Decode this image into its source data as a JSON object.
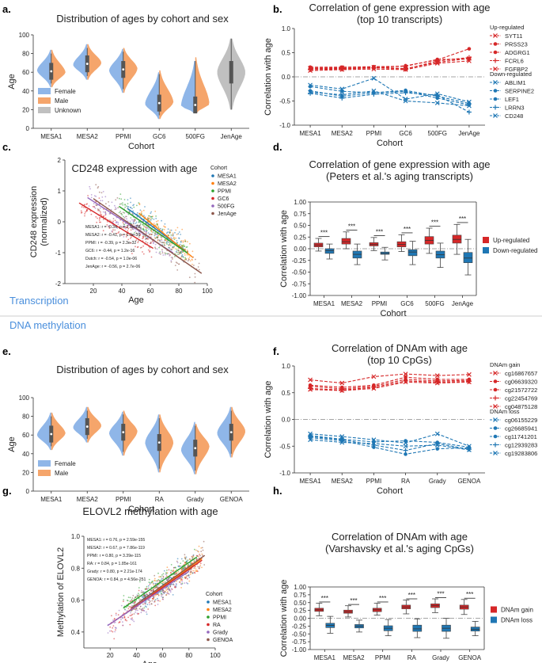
{
  "section_labels": {
    "transcription": "Transcription",
    "methylation": "DNA methylation"
  },
  "colors": {
    "female": "#8fb6e8",
    "male": "#f5a56b",
    "unknown": "#c0c0c0",
    "up": "#d62728",
    "down": "#1f77b4",
    "section": "#4a8fdc",
    "cohort_colors": [
      "#1f77b4",
      "#ff7f0e",
      "#2ca02c",
      "#d62728",
      "#9467bd",
      "#8c564b"
    ]
  },
  "chart_data": [
    {
      "panel": "a.",
      "type": "violin",
      "title": "Distribution of ages by cohort and sex",
      "xlabel": "Cohort",
      "ylabel": "Age",
      "ylim": [
        0,
        100
      ],
      "yticks": [
        0,
        20,
        40,
        60,
        80,
        100
      ],
      "categories": [
        "MESA1",
        "MESA2",
        "PPMI",
        "GC6",
        "500FG",
        "JenAge"
      ],
      "legend": [
        "Female",
        "Male",
        "Unknown"
      ],
      "groups": [
        {
          "female": [
            44,
            84,
            62
          ],
          "male": [
            44,
            84,
            60
          ]
        },
        {
          "female": [
            52,
            90,
            68
          ],
          "male": [
            52,
            90,
            70
          ]
        },
        {
          "female": [
            38,
            85,
            62
          ],
          "male": [
            38,
            86,
            64
          ]
        },
        {
          "female": [
            10,
            60,
            26
          ],
          "male": [
            10,
            62,
            28
          ]
        },
        {
          "female": [
            16,
            72,
            24
          ],
          "male": [
            16,
            76,
            26
          ]
        },
        {
          "unknown": [
            20,
            96,
            60
          ]
        }
      ]
    },
    {
      "panel": "b.",
      "type": "line",
      "title": "Correlation of gene expression with age",
      "subtitle": "(top 10 transcripts)",
      "xlabel": "Cohort",
      "ylabel": "Correlation with age",
      "ylim": [
        -1.0,
        1.0
      ],
      "yticks": [
        -1.0,
        -0.5,
        0.0,
        0.5,
        1.0
      ],
      "categories": [
        "MESA1",
        "MESA2",
        "PPMI",
        "GC6",
        "500FG",
        "JenAge"
      ],
      "up_title": "Up-regulated",
      "down_title": "Down-regulated",
      "up_series": [
        {
          "name": "SYT11",
          "values": [
            0.18,
            0.19,
            0.2,
            0.17,
            0.3,
            0.38
          ]
        },
        {
          "name": "PRSS23",
          "values": [
            0.2,
            0.2,
            0.21,
            0.22,
            0.36,
            0.37
          ]
        },
        {
          "name": "ADGRG1",
          "values": [
            0.17,
            0.17,
            0.18,
            0.23,
            0.35,
            0.58
          ]
        },
        {
          "name": "FCRL6",
          "values": [
            0.15,
            0.16,
            0.19,
            0.16,
            0.33,
            0.4
          ]
        },
        {
          "name": "FGFBP2",
          "values": [
            0.13,
            0.15,
            0.16,
            0.15,
            0.28,
            0.33
          ]
        }
      ],
      "down_series": [
        {
          "name": "ABLIM1",
          "values": [
            -0.17,
            -0.25,
            -0.03,
            -0.46,
            -0.35,
            -0.52
          ]
        },
        {
          "name": "SERPINE2",
          "values": [
            -0.2,
            -0.3,
            -0.33,
            -0.3,
            -0.44,
            -0.58
          ]
        },
        {
          "name": "LEF1",
          "values": [
            -0.29,
            -0.4,
            -0.33,
            -0.28,
            -0.4,
            -0.55
          ]
        },
        {
          "name": "LRRN3",
          "values": [
            -0.34,
            -0.44,
            -0.36,
            -0.33,
            -0.38,
            -0.73
          ]
        },
        {
          "name": "CD248",
          "values": [
            -0.32,
            -0.37,
            -0.29,
            -0.5,
            -0.54,
            -0.6
          ]
        }
      ]
    },
    {
      "panel": "c.",
      "type": "scatter",
      "title": "CD248 expression with age",
      "xlabel": "Age",
      "ylabel": "CD248 expression\n(normalized)",
      "xlim": [
        0,
        100
      ],
      "ylim": [
        -2,
        2
      ],
      "xticks": [
        20,
        40,
        60,
        80,
        100
      ],
      "yticks": [
        -2,
        -1,
        0,
        1,
        2
      ],
      "legend_title": "Cohort",
      "cohorts": [
        {
          "name": "MESA1",
          "age": [
            44,
            84
          ],
          "fit": [
            0.43,
            -0.91
          ]
        },
        {
          "name": "MESA2",
          "age": [
            52,
            90
          ],
          "fit": [
            0.28,
            -1.16
          ]
        },
        {
          "name": "PPMI",
          "age": [
            38,
            86
          ],
          "fit": [
            0.5,
            -1.01
          ]
        },
        {
          "name": "GC6",
          "age": [
            10,
            62
          ],
          "fit": [
            0.61,
            -0.86
          ]
        },
        {
          "name": "500FG",
          "age": [
            16,
            76
          ],
          "fit": [
            0.78,
            -1.01
          ]
        },
        {
          "name": "JenAge",
          "age": [
            20,
            96
          ],
          "fit": [
            0.75,
            -1.67
          ]
        }
      ],
      "annotations": [
        "MESA1: r = -0.34, p = 2.1e-28",
        "MESA2: r = -0.41, p = 1.9e-36",
        "PPMI: r = -0.39, p = 2.3e-32",
        "GC6: r = -0.44, p = 1.2e-16",
        "Dutch: r = -0.54, p = 1.0e-06",
        "JenAge: r = -0.56, p = 2.7e-06"
      ]
    },
    {
      "panel": "d.",
      "type": "box",
      "title": "Correlation of gene expression with age",
      "subtitle": "(Peters et al.'s aging transcripts)",
      "xlabel": "Cohort",
      "ylabel": "Correlation with age",
      "ylim": [
        -1.0,
        1.0
      ],
      "yticks": [
        -1.0,
        -0.75,
        -0.5,
        -0.25,
        0.0,
        0.25,
        0.5,
        0.75,
        1.0
      ],
      "categories": [
        "MESA1",
        "MESA2",
        "PPMI",
        "GC6",
        "500FG",
        "JenAge"
      ],
      "legend": [
        "Up-regulated",
        "Down-regulated"
      ],
      "significance": "***",
      "up_boxes": [
        [
          -0.05,
          0.04,
          0.08,
          0.12,
          0.22
        ],
        [
          0.0,
          0.1,
          0.15,
          0.22,
          0.36
        ],
        [
          -0.04,
          0.06,
          0.09,
          0.13,
          0.24
        ],
        [
          -0.06,
          0.04,
          0.09,
          0.15,
          0.3
        ],
        [
          -0.1,
          0.1,
          0.18,
          0.26,
          0.44
        ],
        [
          -0.12,
          0.12,
          0.2,
          0.29,
          0.52
        ]
      ],
      "down_boxes": [
        [
          -0.22,
          -0.1,
          -0.04,
          0.0,
          0.1
        ],
        [
          -0.34,
          -0.2,
          -0.12,
          -0.05,
          0.1
        ],
        [
          -0.24,
          -0.12,
          -0.1,
          -0.07,
          0.03
        ],
        [
          -0.34,
          -0.15,
          -0.07,
          -0.02,
          0.16
        ],
        [
          -0.4,
          -0.2,
          -0.13,
          -0.05,
          0.12
        ],
        [
          -0.56,
          -0.3,
          -0.2,
          -0.08,
          0.2
        ]
      ]
    },
    {
      "panel": "e.",
      "type": "violin",
      "title": "Distribution of ages by cohort and sex",
      "xlabel": "Cohort",
      "ylabel": "Age",
      "ylim": [
        0,
        100
      ],
      "yticks": [
        0,
        20,
        40,
        60,
        80,
        100
      ],
      "categories": [
        "MESA1",
        "MESA2",
        "PPMI",
        "RA",
        "Grady",
        "GENOA"
      ],
      "legend": [
        "Female",
        "Male"
      ],
      "groups": [
        {
          "female": [
            44,
            84,
            60
          ],
          "male": [
            44,
            84,
            62
          ]
        },
        {
          "female": [
            52,
            90,
            68
          ],
          "male": [
            52,
            90,
            70
          ]
        },
        {
          "female": [
            38,
            85,
            62
          ],
          "male": [
            38,
            86,
            64
          ]
        },
        {
          "female": [
            20,
            82,
            52
          ],
          "male": [
            20,
            82,
            52
          ]
        },
        {
          "female": [
            18,
            74,
            44
          ],
          "male": [
            18,
            72,
            48
          ]
        },
        {
          "female": [
            36,
            90,
            62
          ],
          "male": [
            36,
            90,
            64
          ]
        }
      ]
    },
    {
      "panel": "f.",
      "type": "line",
      "title": "Correlation of DNAm with age",
      "subtitle": "(top 10 CpGs)",
      "xlabel": "Cohort",
      "ylabel": "Correlation with age",
      "ylim": [
        -1.0,
        1.0
      ],
      "yticks": [
        -1.0,
        -0.5,
        0.0,
        0.5,
        1.0
      ],
      "categories": [
        "MESA1",
        "MESA2",
        "PPMI",
        "RA",
        "Grady",
        "GENOA"
      ],
      "up_title": "DNAm gain",
      "down_title": "DNAm loss",
      "up_series": [
        {
          "name": "cg16867657",
          "values": [
            0.74,
            0.68,
            0.8,
            0.85,
            0.82,
            0.84
          ]
        },
        {
          "name": "cg06639320",
          "values": [
            0.64,
            0.6,
            0.64,
            0.79,
            0.75,
            0.75
          ]
        },
        {
          "name": "cg21572722",
          "values": [
            0.62,
            0.57,
            0.62,
            0.75,
            0.72,
            0.73
          ]
        },
        {
          "name": "cg22454769",
          "values": [
            0.58,
            0.55,
            0.6,
            0.72,
            0.7,
            0.71
          ]
        },
        {
          "name": "cg04875128",
          "values": [
            0.56,
            0.54,
            0.58,
            0.7,
            0.68,
            0.7
          ]
        }
      ],
      "down_series": [
        {
          "name": "cg06155229",
          "values": [
            -0.27,
            -0.32,
            -0.38,
            -0.44,
            -0.27,
            -0.5
          ]
        },
        {
          "name": "cg26685941",
          "values": [
            -0.3,
            -0.37,
            -0.42,
            -0.4,
            -0.43,
            -0.52
          ]
        },
        {
          "name": "cg11741201",
          "values": [
            -0.34,
            -0.4,
            -0.52,
            -0.65,
            -0.55,
            -0.53
          ]
        },
        {
          "name": "cg12939283",
          "values": [
            -0.32,
            -0.38,
            -0.48,
            -0.58,
            -0.45,
            -0.56
          ]
        },
        {
          "name": "cg19283806",
          "values": [
            -0.38,
            -0.43,
            -0.45,
            -0.5,
            -0.48,
            -0.57
          ]
        }
      ]
    },
    {
      "panel": "g.",
      "type": "scatter",
      "title": "ELOVL2 methylation with age",
      "xlabel": "Age",
      "ylabel": "Methylation of ELOVL2",
      "xlim": [
        0,
        100
      ],
      "ylim": [
        0.3,
        1.0
      ],
      "xticks": [
        20,
        40,
        60,
        80,
        100
      ],
      "yticks": [
        0.4,
        0.6,
        0.8,
        1.0
      ],
      "legend_title": "Cohort",
      "cohorts": [
        {
          "name": "MESA1",
          "age": [
            44,
            84
          ],
          "fit": [
            0.6,
            0.82
          ]
        },
        {
          "name": "MESA2",
          "age": [
            52,
            90
          ],
          "fit": [
            0.64,
            0.86
          ]
        },
        {
          "name": "PPMI",
          "age": [
            30,
            86
          ],
          "fit": [
            0.55,
            0.87
          ]
        },
        {
          "name": "RA",
          "age": [
            20,
            90
          ],
          "fit": [
            0.45,
            0.85
          ]
        },
        {
          "name": "Grady",
          "age": [
            18,
            80
          ],
          "fit": [
            0.44,
            0.78
          ]
        },
        {
          "name": "GENOA",
          "age": [
            36,
            92
          ],
          "fit": [
            0.55,
            0.88
          ]
        }
      ],
      "annotations": [
        "MESA1: r = 0.76, p = 2.59e-155",
        "MESA2: r = 0.67, p = 7.86e-119",
        "PPMI: r = 0.80, p = 3.39e-115",
        "RA: r = 0.84, p = 1.85e-161",
        "Grady: r = 0.80, p = 2.21e-174",
        "GENOA: r = 0.84, p = 4.56e-251"
      ]
    },
    {
      "panel": "h.",
      "type": "box",
      "title": "Correlation of DNAm with age",
      "subtitle": "(Varshavsky et al.'s aging CpGs)",
      "xlabel": "Cohort",
      "ylabel": "Correlation with age",
      "ylim": [
        -1.0,
        1.0
      ],
      "yticks": [
        -1.0,
        -0.75,
        -0.5,
        -0.25,
        0.0,
        0.25,
        0.5,
        0.75,
        1.0
      ],
      "categories": [
        "MESA1",
        "MESA2",
        "PPMI",
        "RA",
        "Grady",
        "GENOA"
      ],
      "legend": [
        "DNAm gain",
        "DNAm loss"
      ],
      "significance": "***",
      "up_boxes": [
        [
          0.08,
          0.22,
          0.27,
          0.32,
          0.48
        ],
        [
          0.04,
          0.16,
          0.2,
          0.26,
          0.4
        ],
        [
          0.1,
          0.21,
          0.27,
          0.32,
          0.48
        ],
        [
          0.14,
          0.3,
          0.36,
          0.42,
          0.58
        ],
        [
          0.18,
          0.34,
          0.4,
          0.46,
          0.62
        ],
        [
          0.12,
          0.29,
          0.36,
          0.42,
          0.6
        ]
      ],
      "down_boxes": [
        [
          -0.48,
          -0.3,
          -0.23,
          -0.16,
          0.06
        ],
        [
          -0.44,
          -0.31,
          -0.25,
          -0.2,
          -0.06
        ],
        [
          -0.56,
          -0.4,
          -0.32,
          -0.24,
          -0.04
        ],
        [
          -0.62,
          -0.42,
          -0.34,
          -0.22,
          -0.02
        ],
        [
          -0.64,
          -0.42,
          -0.32,
          -0.22,
          0.0
        ],
        [
          -0.56,
          -0.41,
          -0.35,
          -0.28,
          -0.1
        ]
      ]
    }
  ]
}
